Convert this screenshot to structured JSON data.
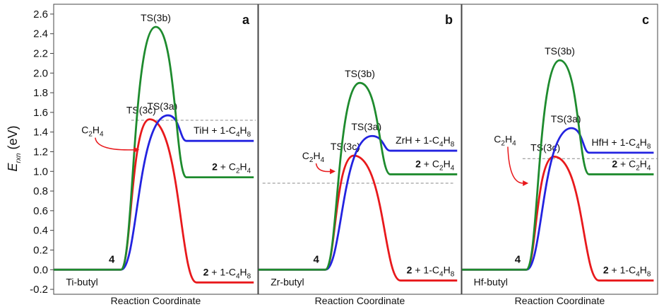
{
  "chart_data": [
    {
      "type": "energy-profile",
      "panel": "a",
      "xlabel": "Reaction Coordinate",
      "ylabel": [
        "E",
        "rxn",
        "(eV)"
      ],
      "ylim": [
        -0.25,
        2.7
      ],
      "yticks": [
        -0.2,
        {
          "value": 0,
          "label": "0.0"
        },
        0.2,
        0.4,
        0.6,
        0.8,
        {
          "value": 1,
          "label": "1.0"
        },
        1.2,
        1.4,
        1.6,
        1.8,
        {
          "value": 2,
          "label": "2.0"
        },
        2.2,
        2.4,
        2.6
      ],
      "reactant": {
        "label": "4",
        "name": "Ti-butyl"
      },
      "annotation": "C2H4",
      "reference_level": 1.52,
      "series": [
        {
          "name": "TS(3c)",
          "color": "#e8191c",
          "values": [
            0,
            1.53,
            -0.13
          ],
          "product": "2 + 1-C4H8"
        },
        {
          "name": "TS(3a)",
          "color": "#2323e0",
          "values": [
            0,
            1.57,
            1.31
          ],
          "product": "TiH + 1-C4H8"
        },
        {
          "name": "TS(3b)",
          "color": "#1e8b2e",
          "values": [
            0,
            2.47,
            0.94
          ],
          "product": "2 + C2H4"
        }
      ]
    },
    {
      "type": "energy-profile",
      "panel": "b",
      "xlabel": "Reaction Coordinate",
      "ylim": [
        -0.25,
        2.7
      ],
      "reactant": {
        "label": "4",
        "name": "Zr-butyl"
      },
      "annotation": "C2H4",
      "reference_level": 0.88,
      "series": [
        {
          "name": "TS(3c)",
          "color": "#e8191c",
          "values": [
            0,
            1.16,
            -0.11
          ],
          "product": "2 + 1-C4H8"
        },
        {
          "name": "TS(3a)",
          "color": "#2323e0",
          "values": [
            0,
            1.36,
            1.21
          ],
          "product": "ZrH + 1-C4H8"
        },
        {
          "name": "TS(3b)",
          "color": "#1e8b2e",
          "values": [
            0,
            1.9,
            0.97
          ],
          "product": "2 + C2H4"
        }
      ]
    },
    {
      "type": "energy-profile",
      "panel": "c",
      "xlabel": "Reaction Coordinate",
      "ylim": [
        -0.25,
        2.7
      ],
      "reactant": {
        "label": "4",
        "name": "Hf-butyl"
      },
      "annotation": "C2H4",
      "reference_level": 1.13,
      "series": [
        {
          "name": "TS(3c)",
          "color": "#e8191c",
          "values": [
            0,
            1.15,
            -0.11
          ],
          "product": "2 + 1-C4H8"
        },
        {
          "name": "TS(3a)",
          "color": "#2323e0",
          "values": [
            0,
            1.44,
            1.19
          ],
          "product": "HfH + 1-C4H8"
        },
        {
          "name": "TS(3b)",
          "color": "#1e8b2e",
          "values": [
            0,
            2.13,
            0.97
          ],
          "product": "2 + C2H4"
        }
      ]
    }
  ]
}
